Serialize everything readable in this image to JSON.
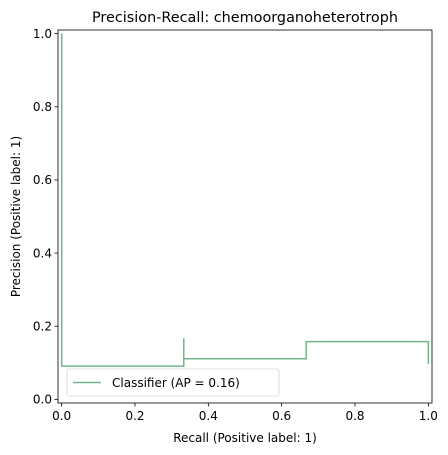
{
  "chart_data": {
    "type": "line",
    "title": "Precision-Recall: chemoorganoheterotroph",
    "xlabel": "Recall (Positive label: 1)",
    "ylabel": "Precision (Positive label: 1)",
    "xlim": [
      -0.01,
      1.01
    ],
    "ylim": [
      -0.01,
      1.01
    ],
    "xticks": [
      0.0,
      0.2,
      0.4,
      0.6,
      0.8,
      1.0
    ],
    "yticks": [
      0.0,
      0.2,
      0.4,
      0.6,
      0.8,
      1.0
    ],
    "xtick_labels": [
      "0.0",
      "0.2",
      "0.4",
      "0.6",
      "0.8",
      "1.0"
    ],
    "ytick_labels": [
      "0.0",
      "0.2",
      "0.4",
      "0.6",
      "0.8",
      "1.0"
    ],
    "grid": false,
    "legend_position": "lower-left",
    "series": [
      {
        "name": "Classifier (AP = 0.16)",
        "color": "#6fb78b",
        "drawstyle": "steps-post",
        "recall": [
          1.0,
          1.0,
          0.667,
          0.667,
          0.333,
          0.333,
          0.0,
          0.0
        ],
        "precision": [
          0.097,
          0.158,
          0.158,
          0.111,
          0.167,
          0.091,
          0.167,
          1.0
        ]
      }
    ]
  }
}
